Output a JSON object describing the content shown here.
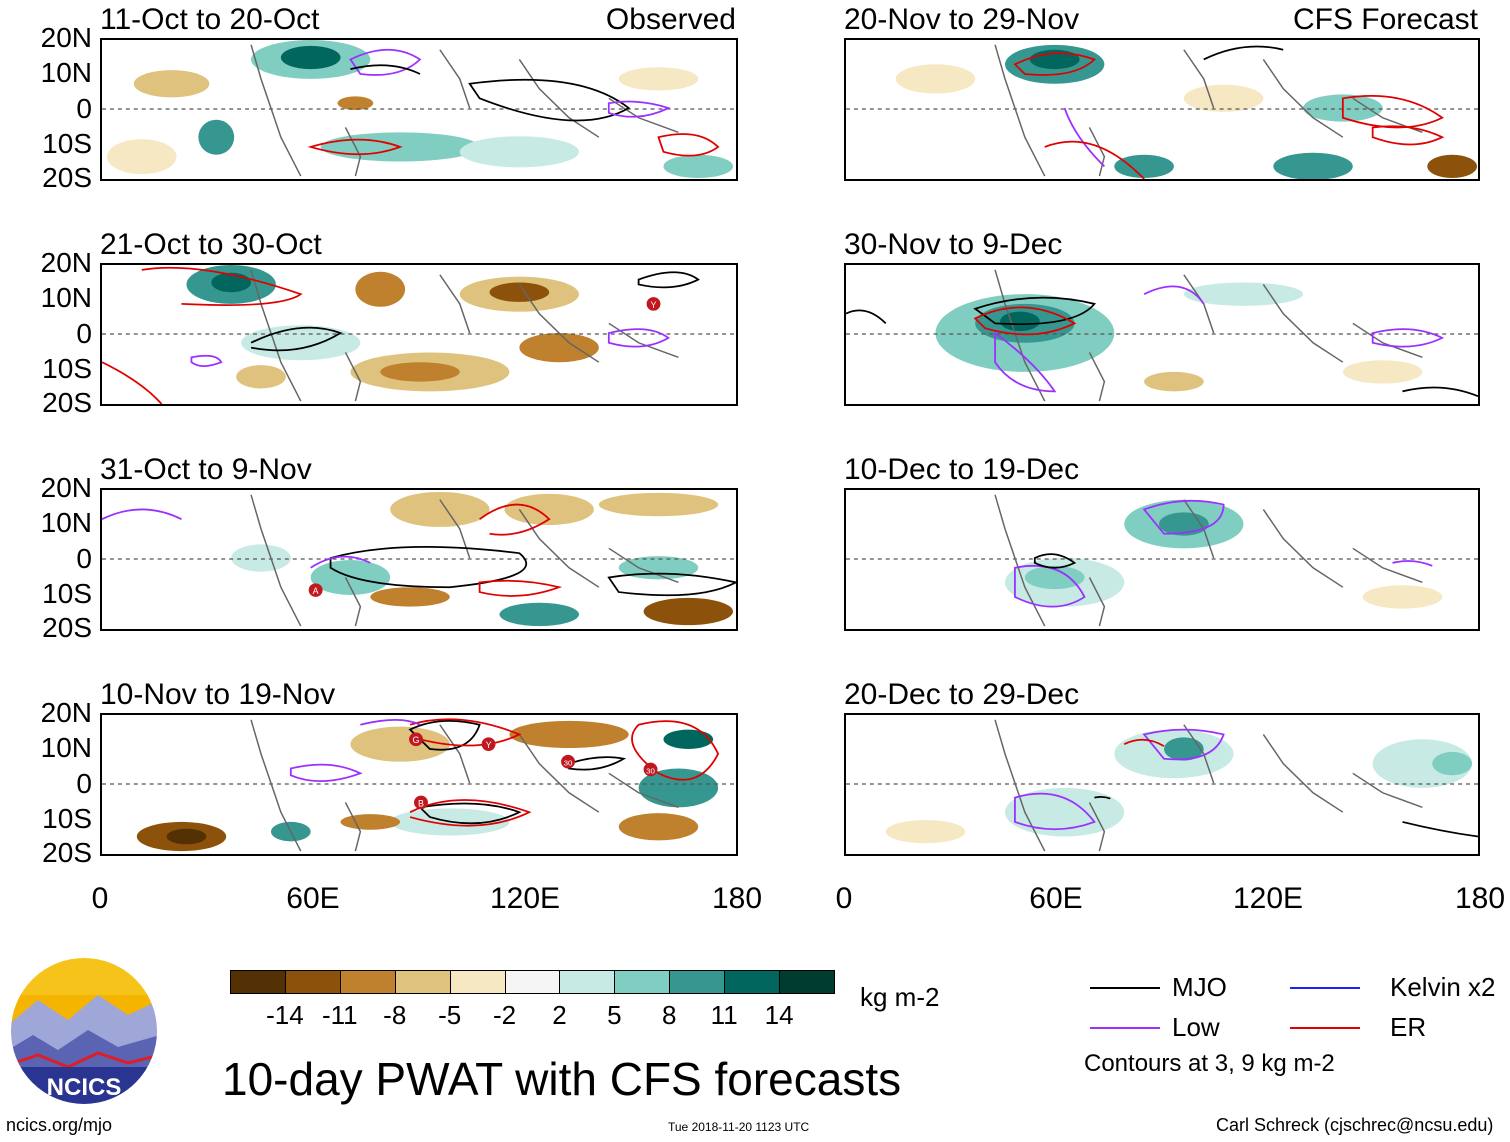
{
  "colors": {
    "mjo": "#000000",
    "low": "#9b30ff",
    "kelvin": "#2020ff",
    "er": "#e00000",
    "coast": "#666666",
    "cbar": [
      "#543005",
      "#8c510a",
      "#bf812d",
      "#dfc27d",
      "#f6e8c3",
      "#f5f5f5",
      "#c7eae5",
      "#80cdc1",
      "#35978f",
      "#01665e",
      "#003c30"
    ]
  },
  "left_header_tag": "Observed",
  "right_header_tag": "CFS Forecast",
  "panels_left": [
    {
      "title": "11-Oct to 20-Oct"
    },
    {
      "title": "21-Oct to 30-Oct"
    },
    {
      "title": "31-Oct to 9-Nov"
    },
    {
      "title": "10-Nov to 19-Nov"
    }
  ],
  "panels_right": [
    {
      "title": "20-Nov to 29-Nov"
    },
    {
      "title": "30-Nov to 9-Dec"
    },
    {
      "title": "10-Dec to 19-Dec"
    },
    {
      "title": "20-Dec to 29-Dec"
    }
  ],
  "y_ticks": [
    "20N",
    "10N",
    "0",
    "10S",
    "20S"
  ],
  "x_ticks": [
    "0",
    "60E",
    "120E",
    "180"
  ],
  "colorbar": {
    "labels": [
      "-14",
      "-11",
      "-8",
      "-5",
      "-2",
      "2",
      "5",
      "8",
      "11",
      "14"
    ],
    "units": "kg m-2"
  },
  "legend": {
    "mjo": "MJO",
    "kelvin": "Kelvin x2",
    "low": "Low",
    "er": "ER",
    "contours_note": "Contours at 3, 9 kg m-2"
  },
  "logo_text": "NCICS",
  "main_title": "10-day PWAT with CFS forecasts",
  "footer": {
    "url": "ncics.org/mjo",
    "timestamp": "Tue 2018-11-20 1123 UTC",
    "author": "Carl Schreck (cjschrec@ncsu.edu)"
  },
  "storm_markers": {
    "p2": [
      "Y"
    ],
    "p3": [
      "A"
    ],
    "p4": [
      "G",
      "Y",
      "30",
      "30",
      "B"
    ]
  }
}
